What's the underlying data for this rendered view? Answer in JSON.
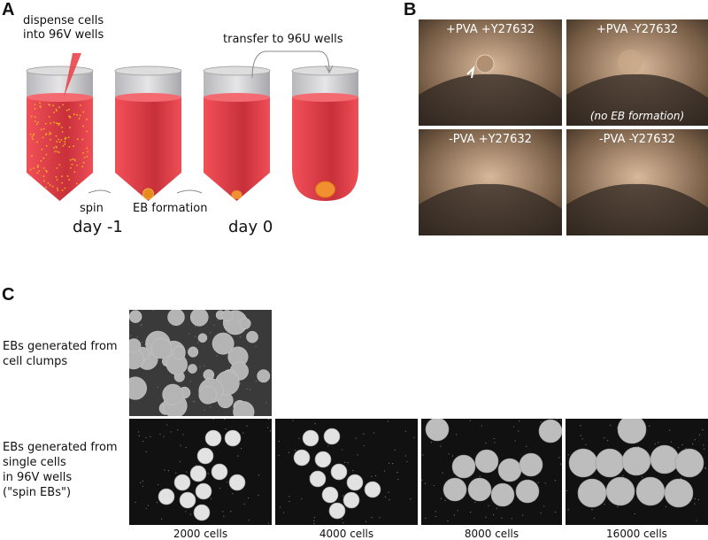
{
  "panel_a": {
    "label": "A",
    "dispense": [
      "dispense cells",
      "into 96V wells"
    ],
    "transfer": "transfer to 96U wells",
    "spin": "spin",
    "eb_formation": "EB formation",
    "day_minus1": "day -1",
    "day0": "day 0"
  },
  "panel_b": {
    "label": "B",
    "images": [
      {
        "caption": "+PVA +Y27632",
        "note": ""
      },
      {
        "caption": "+PVA -Y27632",
        "note": "(no EB formation)"
      },
      {
        "caption": "-PVA +Y27632",
        "note": ""
      },
      {
        "caption": "-PVA -Y27632",
        "note": ""
      }
    ]
  },
  "panel_c": {
    "label": "C",
    "row1_label": [
      "EBs generated from",
      "cell clumps"
    ],
    "row2_label": [
      "EBs generated from",
      "single cells",
      "in 96V wells",
      "(\"spin EBs\")"
    ],
    "conditions": [
      "2000 cells",
      "4000 cells",
      "8000 cells",
      "16000 cells"
    ]
  },
  "colors": {
    "medium": "#e8454e",
    "cells": "#f0a020",
    "tube_gray": "#c8c8cc"
  }
}
